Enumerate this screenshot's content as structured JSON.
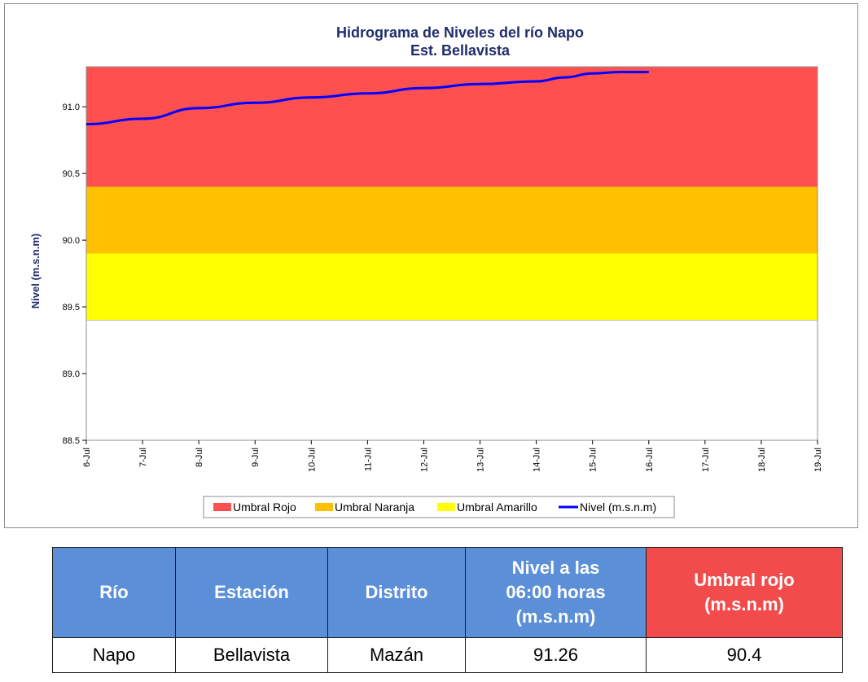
{
  "chart_data": {
    "type": "line",
    "title": "Hidrograma de Niveles del río Napo",
    "subtitle": "Est. Bellavista",
    "ylabel": "Nivel (m.s.n.m)",
    "xlabel": "",
    "ylim": [
      88.5,
      91.3
    ],
    "y_ticks": [
      "88.5",
      "89.0",
      "89.5",
      "90.0",
      "90.5",
      "91.0"
    ],
    "x_ticks": [
      "6-Jul",
      "7-Jul",
      "8-Jul",
      "9-Jul",
      "10-Jul",
      "11-Jul",
      "12-Jul",
      "13-Jul",
      "14-Jul",
      "15-Jul",
      "16-Jul",
      "17-Jul",
      "18-Jul",
      "19-Jul"
    ],
    "thresholds": [
      {
        "name": "Umbral Rojo",
        "from": 90.4,
        "to": 91.3,
        "color": "#ff5050"
      },
      {
        "name": "Umbral Naranja",
        "from": 89.9,
        "to": 90.4,
        "color": "#ffc000"
      },
      {
        "name": "Umbral Amarillo",
        "from": 89.4,
        "to": 89.9,
        "color": "#ffff00"
      }
    ],
    "series": [
      {
        "name": "Nivel (m.s.n.m)",
        "color": "#0000ff",
        "x": [
          0,
          1,
          2,
          3,
          4,
          5,
          6,
          7,
          8,
          8.5,
          9,
          9.5,
          10
        ],
        "y": [
          90.87,
          90.91,
          90.99,
          91.03,
          91.07,
          91.1,
          91.14,
          91.17,
          91.19,
          91.22,
          91.25,
          91.26,
          91.26
        ]
      }
    ],
    "legend": [
      "Umbral Rojo",
      "Umbral Naranja",
      "Umbral Amarillo",
      "Nivel (m.s.n.m)"
    ],
    "legend_position": "bottom",
    "grid": false
  },
  "table": {
    "headers": [
      "Río",
      "Estación",
      "Distrito",
      "Nivel a las\n06:00 horas\n(m.s.n.m)",
      "Umbral rojo\n(m.s.n.m)"
    ],
    "row": [
      "Napo",
      "Bellavista",
      "Mazán",
      "91.26",
      "90.4"
    ]
  }
}
